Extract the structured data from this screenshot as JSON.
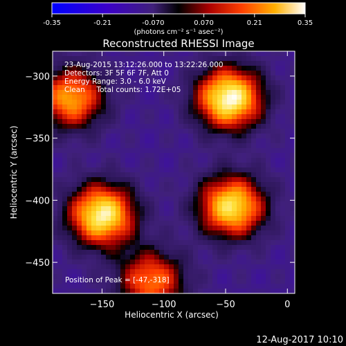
{
  "chart_data": {
    "type": "heatmap",
    "title": "Reconstructed RHESSI Image",
    "xlabel": "Heliocentric X (arcsec)",
    "ylabel": "Heliocentric Y (arcsec)",
    "xlim": [
      -190,
      6
    ],
    "ylim": [
      -475,
      -280
    ],
    "x_ticks": [
      -150,
      -100,
      -50,
      0
    ],
    "y_ticks": [
      -300,
      -350,
      -400,
      -450
    ],
    "colorbar": {
      "range": [
        -0.35,
        0.35
      ],
      "ticks": [
        "-0.35",
        "-0.21",
        "-0.070",
        "0.070",
        "0.21",
        "0.35"
      ],
      "tick_values": [
        -0.35,
        -0.21,
        -0.07,
        0.07,
        0.21,
        0.35
      ],
      "unit_label": "(photons cm⁻² s⁻¹ asec⁻²)"
    },
    "annotations": [
      "23-Aug-2015 13:12:26.000 to 13:22:26.000",
      "Detectors: 3F 5F 6F 7F, Att 0",
      "Energy Range: 3.0 - 6.0 keV",
      "Clean     Total counts: 1.72E+05"
    ],
    "peak_label": "Position of Peak = [-47,-318]",
    "sources": [
      {
        "x": -47,
        "y": -318,
        "intensity": 0.35
      },
      {
        "x": -45,
        "y": -405,
        "intensity": 0.3
      },
      {
        "x": -150,
        "y": -412,
        "intensity": 0.33
      },
      {
        "x": -175,
        "y": -318,
        "intensity": 0.22
      },
      {
        "x": -110,
        "y": -465,
        "intensity": 0.18
      }
    ],
    "footer_date": "12-Aug-2017 10:10"
  }
}
